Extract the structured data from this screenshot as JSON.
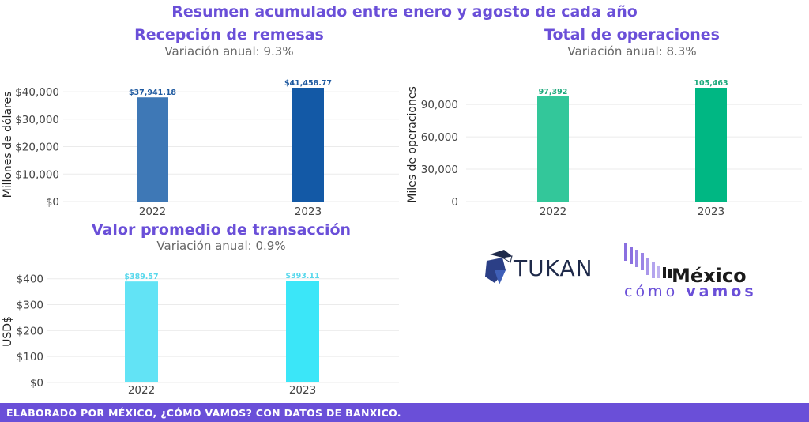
{
  "header": {
    "title": "Resumen acumulado entre enero y agosto de cada año"
  },
  "colors": {
    "accent": "#6a4fd8"
  },
  "chart_data": [
    {
      "type": "bar",
      "title": "Recepción de remesas",
      "subtitle": "Variación anual: 9.3%",
      "ylabel": "Millones de dólares",
      "categories": [
        "2022",
        "2023"
      ],
      "values": [
        37941.18,
        41458.77
      ],
      "value_labels": [
        "$37,941.18",
        "$41,458.77"
      ],
      "yticks": [
        0,
        10000,
        20000,
        30000,
        40000
      ],
      "ytick_labels": [
        "$0",
        "$10,000",
        "$20,000",
        "$30,000",
        "$40,000"
      ],
      "ylim": [
        0,
        41458.77
      ],
      "colors": [
        "#3e78b6",
        "#1359a6"
      ],
      "label_color": "#1f5aa0",
      "grid": true
    },
    {
      "type": "bar",
      "title": "Total de operaciones",
      "subtitle": "Variación anual: 8.3%",
      "ylabel": "Miles de operaciones",
      "categories": [
        "2022",
        "2023"
      ],
      "values": [
        97392,
        105463
      ],
      "value_labels": [
        "97,392",
        "105,463"
      ],
      "yticks": [
        0,
        30000,
        60000,
        90000
      ],
      "ytick_labels": [
        "0",
        "30,000",
        "60,000",
        "90,000"
      ],
      "ylim": [
        0,
        105463
      ],
      "colors": [
        "#33c79a",
        "#00b783"
      ],
      "label_color": "#1faa7d",
      "grid": true
    },
    {
      "type": "bar",
      "title": "Valor promedio de transacción",
      "subtitle": "Variación anual: 0.9%",
      "ylabel": "USD$",
      "categories": [
        "2022",
        "2023"
      ],
      "values": [
        389.57,
        393.11
      ],
      "value_labels": [
        "$389.57",
        "$393.11"
      ],
      "yticks": [
        0,
        100,
        200,
        300,
        400
      ],
      "ytick_labels": [
        "$0",
        "$100",
        "$200",
        "$300",
        "$400"
      ],
      "ylim": [
        0,
        393.11
      ],
      "colors": [
        "#62e3f5",
        "#3be6f8"
      ],
      "label_color": "#59d8ec",
      "grid": true
    }
  ],
  "logos": {
    "tukan": "TUKAN",
    "mcv_mexico": "México",
    "mcv_como": "cómo",
    "mcv_vamos": "vamos"
  },
  "footer": {
    "text": "ELABORADO POR MÉXICO, ¿CÓMO VAMOS? CON DATOS DE BANXICO."
  }
}
